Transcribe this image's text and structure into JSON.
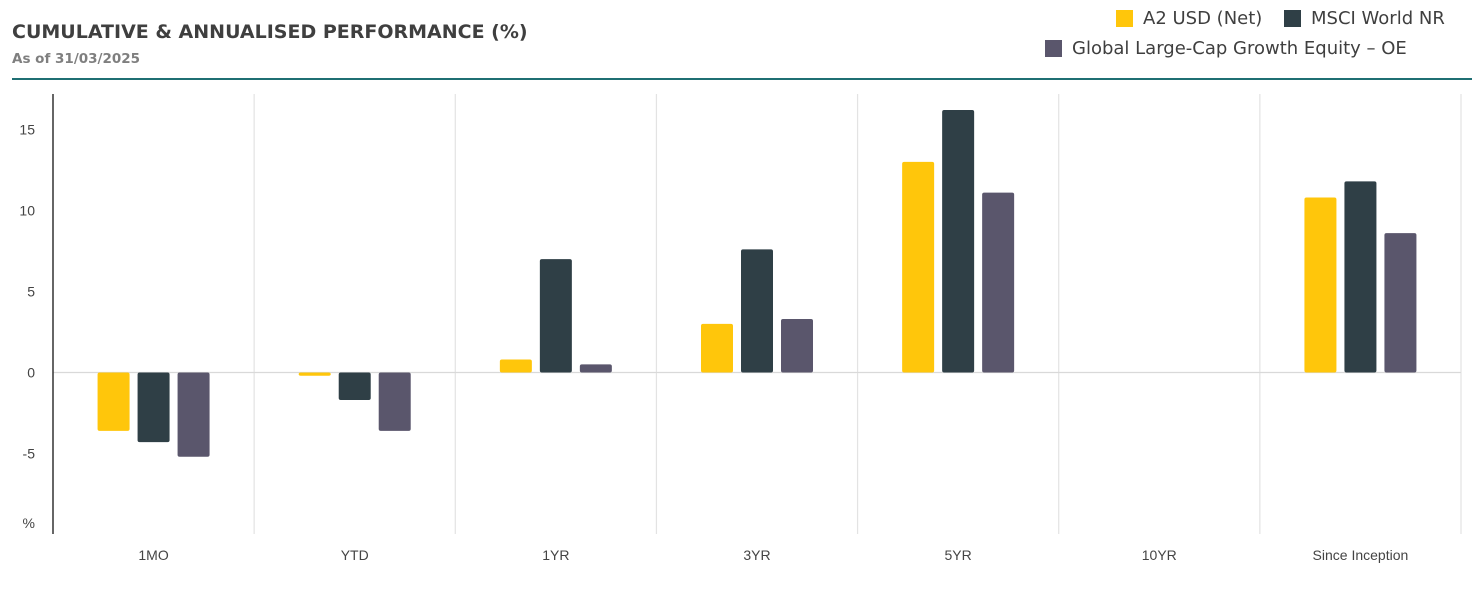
{
  "header": {
    "title": "CUMULATIVE & ANNUALISED PERFORMANCE (%)",
    "subtitle": "As of 31/03/2025"
  },
  "legend": [
    {
      "label": "A2 USD (Net)",
      "color": "#ffc60b"
    },
    {
      "label": "MSCI World NR",
      "color": "#2f3f46"
    },
    {
      "label": "Global Large-Cap Growth Equity – OE",
      "color": "#5a566c"
    }
  ],
  "chart_data": {
    "type": "bar",
    "categories": [
      "1MO",
      "YTD",
      "1YR",
      "3YR",
      "5YR",
      "10YR",
      "Since Inception"
    ],
    "series": [
      {
        "name": "A2 USD (Net)",
        "color": "#ffc60b",
        "values": [
          -3.6,
          -0.2,
          0.8,
          3.0,
          13.0,
          null,
          10.8
        ]
      },
      {
        "name": "MSCI World NR",
        "color": "#2f3f46",
        "values": [
          -4.3,
          -1.7,
          7.0,
          7.6,
          16.2,
          null,
          11.8
        ]
      },
      {
        "name": "Global Large-Cap Growth Equity – OE",
        "color": "#5a566c",
        "values": [
          -5.2,
          -3.6,
          0.5,
          3.3,
          11.1,
          null,
          8.6
        ]
      }
    ],
    "yticks": [
      15,
      10,
      5,
      0,
      -5
    ],
    "ylabel": "%",
    "ylim": [
      -10,
      17.5
    ],
    "grid": "vertical category separators",
    "legend_position": "top-right"
  }
}
